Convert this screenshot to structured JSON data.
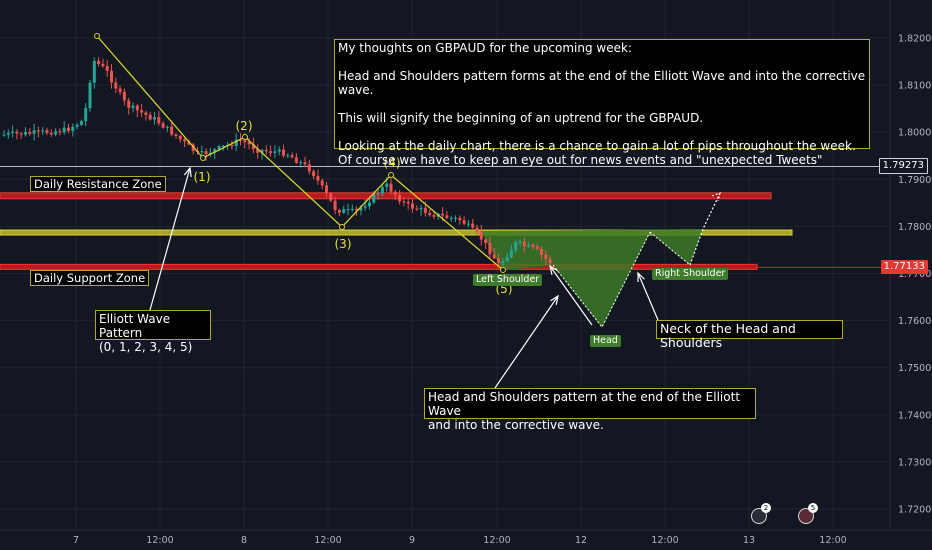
{
  "chart_data": {
    "type": "candlestick",
    "symbol": "GBPAUD",
    "y_axis": {
      "ticks": [
        "1.82000",
        "1.81000",
        "1.80000",
        "1.79000",
        "1.78000",
        "1.77000",
        "1.76000",
        "1.75000",
        "1.74000",
        "1.73000",
        "1.72000"
      ],
      "ylim": [
        1.717,
        1.823
      ]
    },
    "x_axis": {
      "ticks": [
        "7",
        "12:00",
        "8",
        "12:00",
        "9",
        "12:00",
        "12",
        "12:00",
        "13",
        "12:00"
      ]
    },
    "price_badges": [
      {
        "label": "1.79273",
        "value": 1.79273,
        "color": "#131722",
        "border": "#d1d4dc"
      },
      {
        "label": "1.77133",
        "value": 1.77133,
        "color": "#e53935",
        "border": "#e53935"
      }
    ],
    "zones": [
      {
        "name": "Daily Resistance Zone",
        "value": 1.7865,
        "color": "#e53935"
      },
      {
        "name": "Daily Support Zone",
        "value": 1.7713,
        "color": "#e53935"
      },
      {
        "name": "Neckline",
        "value": 1.7787,
        "color": "#cfca2a"
      }
    ],
    "wave_labels": [
      "(1)",
      "(2)",
      "(3)",
      "(4)",
      "(5)"
    ],
    "pattern_labels": [
      "Left Shoulder",
      "Head",
      "Right Shoulder"
    ],
    "candle_seed": 7
  },
  "annotations": {
    "main_note": "My thoughts on GBPAUD for the upcoming week:\n\nHead and Shoulders pattern forms at the end of the Elliott Wave and into the corrective wave.\n\nThis will signify the beginning of an uptrend for the GBPAUD.\n\nLooking at the daily chart, there is a chance to gain a lot of pips throughout the week.\nOf course we have to keep an eye out for news events and \"unexpected Tweets\"",
    "resistance_label": "Daily Resistance Zone",
    "support_label": "Daily Support Zone",
    "elliott_note": "Elliott Wave Pattern\n(0, 1, 2, 3, 4, 5)",
    "neck_note": "Neck of the Head and Shoulders",
    "hs_note": "Head and Shoulders pattern at the end of the Elliott Wave\nand into the corrective wave."
  },
  "footer": {
    "reaction_1_count": "2",
    "reaction_2_count": "5"
  }
}
